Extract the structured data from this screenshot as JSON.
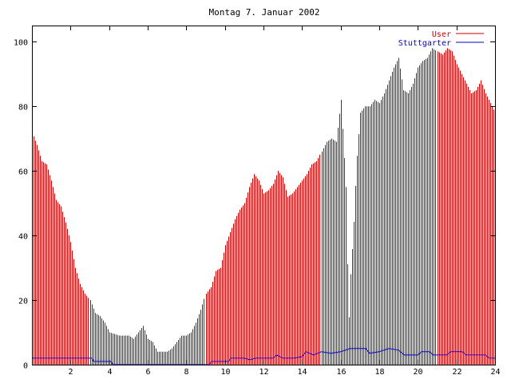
{
  "chart_data": {
    "type": "bar",
    "title": "Montag 7. Januar 2002",
    "xlabel": "",
    "ylabel": "",
    "xlim": [
      0,
      24
    ],
    "ylim": [
      0,
      105
    ],
    "x_ticks": [
      2,
      4,
      6,
      8,
      10,
      12,
      14,
      16,
      18,
      20,
      22,
      24
    ],
    "y_ticks": [
      0,
      20,
      40,
      60,
      80,
      100
    ],
    "grid": false,
    "legend_position": "top-right",
    "interval_minutes": 5,
    "series": [
      {
        "name": "User",
        "style": "impulses",
        "color": "#cc0000",
        "anchors": [
          [
            0.0,
            72
          ],
          [
            0.25,
            68
          ],
          [
            0.5,
            63
          ],
          [
            0.75,
            62
          ],
          [
            1.0,
            57
          ],
          [
            1.25,
            51
          ],
          [
            1.5,
            49
          ],
          [
            1.75,
            44
          ],
          [
            2.0,
            38
          ],
          [
            2.25,
            30
          ],
          [
            2.5,
            25
          ],
          [
            2.75,
            22
          ],
          [
            3.0,
            20
          ],
          [
            3.25,
            16
          ],
          [
            3.5,
            15
          ],
          [
            3.75,
            13
          ],
          [
            4.0,
            10
          ],
          [
            4.5,
            9
          ],
          [
            5.0,
            9
          ],
          [
            5.25,
            8
          ],
          [
            5.5,
            10
          ],
          [
            5.75,
            12
          ],
          [
            6.0,
            8
          ],
          [
            6.25,
            7
          ],
          [
            6.5,
            4
          ],
          [
            7.0,
            4
          ],
          [
            7.25,
            5
          ],
          [
            7.5,
            7
          ],
          [
            7.75,
            9
          ],
          [
            8.0,
            9
          ],
          [
            8.25,
            10
          ],
          [
            8.5,
            13
          ],
          [
            8.75,
            17
          ],
          [
            9.0,
            22
          ],
          [
            9.25,
            24
          ],
          [
            9.5,
            29
          ],
          [
            9.75,
            30
          ],
          [
            10.0,
            37
          ],
          [
            10.25,
            41
          ],
          [
            10.5,
            45
          ],
          [
            10.75,
            48
          ],
          [
            11.0,
            50
          ],
          [
            11.25,
            55
          ],
          [
            11.5,
            59
          ],
          [
            11.75,
            57
          ],
          [
            12.0,
            53
          ],
          [
            12.25,
            54
          ],
          [
            12.5,
            56
          ],
          [
            12.75,
            60
          ],
          [
            13.0,
            58
          ],
          [
            13.25,
            52
          ],
          [
            13.5,
            53
          ],
          [
            13.75,
            55
          ],
          [
            14.0,
            57
          ],
          [
            14.25,
            59
          ],
          [
            14.5,
            62
          ],
          [
            14.75,
            63
          ],
          [
            15.0,
            66
          ],
          [
            15.25,
            69
          ],
          [
            15.5,
            70
          ],
          [
            15.75,
            69
          ],
          [
            16.0,
            82
          ],
          [
            16.25,
            55
          ],
          [
            16.4,
            12
          ],
          [
            16.5,
            28
          ],
          [
            16.65,
            42
          ],
          [
            16.8,
            62
          ],
          [
            17.0,
            78
          ],
          [
            17.25,
            80
          ],
          [
            17.5,
            80
          ],
          [
            17.75,
            82
          ],
          [
            18.0,
            81
          ],
          [
            18.25,
            84
          ],
          [
            18.5,
            88
          ],
          [
            18.75,
            92
          ],
          [
            19.0,
            95
          ],
          [
            19.25,
            85
          ],
          [
            19.5,
            84
          ],
          [
            19.75,
            87
          ],
          [
            20.0,
            92
          ],
          [
            20.25,
            94
          ],
          [
            20.5,
            95
          ],
          [
            20.75,
            98
          ],
          [
            21.0,
            97
          ],
          [
            21.25,
            96
          ],
          [
            21.5,
            98
          ],
          [
            21.75,
            97
          ],
          [
            22.0,
            93
          ],
          [
            22.25,
            90
          ],
          [
            22.5,
            87
          ],
          [
            22.75,
            84
          ],
          [
            23.0,
            85
          ],
          [
            23.25,
            88
          ],
          [
            23.5,
            84
          ],
          [
            23.75,
            81
          ],
          [
            24.0,
            78
          ]
        ]
      },
      {
        "name": "Stuttgarter",
        "style": "lines",
        "color": "#0000cc",
        "points": [
          [
            0.0,
            2
          ],
          [
            3.1,
            2
          ],
          [
            3.2,
            1
          ],
          [
            4.1,
            1
          ],
          [
            4.2,
            0
          ],
          [
            9.2,
            0
          ],
          [
            9.3,
            1
          ],
          [
            10.2,
            1
          ],
          [
            10.3,
            2
          ],
          [
            11.0,
            2
          ],
          [
            11.3,
            1.5
          ],
          [
            11.6,
            2
          ],
          [
            12.5,
            2
          ],
          [
            12.7,
            3
          ],
          [
            13.0,
            2
          ],
          [
            13.6,
            2
          ],
          [
            14.0,
            2.5
          ],
          [
            14.2,
            4
          ],
          [
            14.6,
            3
          ],
          [
            15.0,
            4
          ],
          [
            15.5,
            3.5
          ],
          [
            16.0,
            4
          ],
          [
            16.5,
            5
          ],
          [
            17.3,
            5
          ],
          [
            17.5,
            3.5
          ],
          [
            18.0,
            4
          ],
          [
            18.5,
            5
          ],
          [
            19.0,
            4.5
          ],
          [
            19.3,
            3
          ],
          [
            20.0,
            3
          ],
          [
            20.2,
            4
          ],
          [
            20.6,
            4
          ],
          [
            20.8,
            3
          ],
          [
            21.5,
            3
          ],
          [
            21.7,
            4
          ],
          [
            22.3,
            4
          ],
          [
            22.5,
            3
          ],
          [
            23.5,
            3
          ],
          [
            23.7,
            2
          ],
          [
            24.0,
            2
          ]
        ]
      }
    ]
  }
}
